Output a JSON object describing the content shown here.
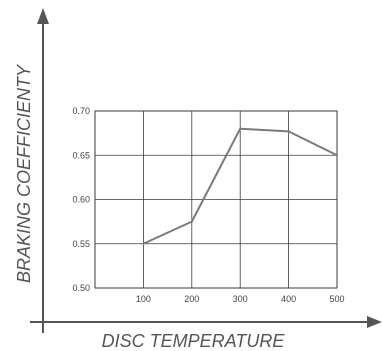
{
  "chart_data": {
    "type": "line",
    "title": "",
    "xlabel": "DISC TEMPERATURE",
    "ylabel": "BRAKING  COEFFICIENTY",
    "x": [
      100,
      200,
      300,
      400,
      500
    ],
    "x_ticks": [
      "100",
      "200",
      "300",
      "400",
      "500"
    ],
    "y_ticks": [
      "0.50",
      "0.55",
      "0.60",
      "0.65",
      "0.70"
    ],
    "xlim": [
      0,
      500
    ],
    "ylim": [
      0.5,
      0.7
    ],
    "grid": true,
    "series": [
      {
        "values": [
          0.55,
          0.575,
          0.68,
          0.677,
          0.65
        ]
      }
    ],
    "colors": {
      "line": "#7a7a7a",
      "grid": "#3a3a3a",
      "axis": "#555555"
    }
  }
}
